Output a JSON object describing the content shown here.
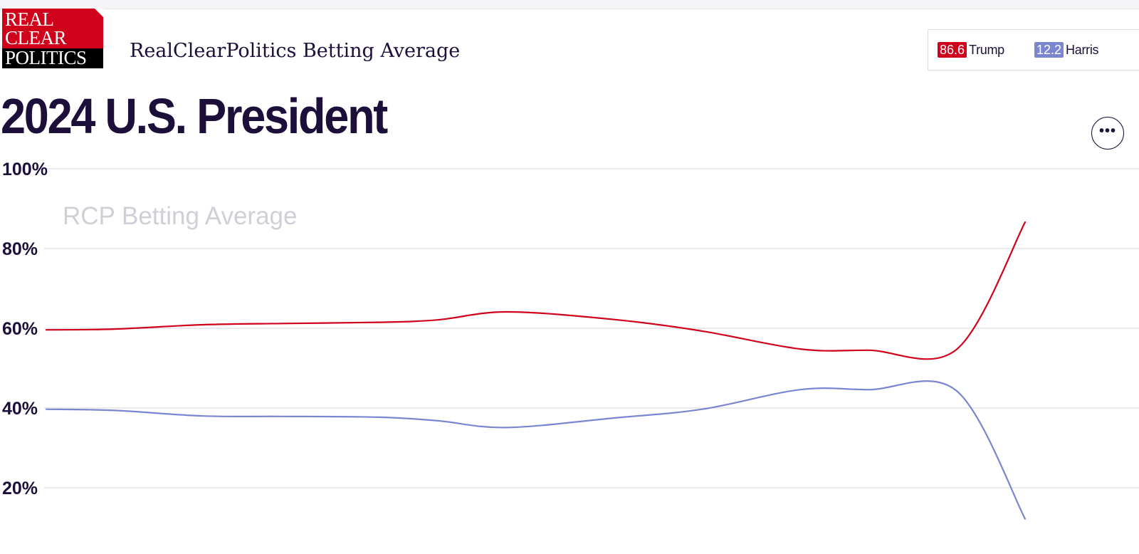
{
  "header": {
    "logo_lines": [
      "REAL",
      "CLEAR",
      "POLITICS"
    ],
    "site_title": "RealClearPolitics Betting Average"
  },
  "legend": {
    "entries": [
      {
        "value": "86.6",
        "name": "Trump",
        "color": "#d0011b"
      },
      {
        "value": "12.2",
        "name": "Harris",
        "color": "#7b86d0"
      }
    ]
  },
  "page": {
    "headline": "2024 U.S. President"
  },
  "more_button": {
    "label": "•••",
    "icon": "more-horizontal-icon"
  },
  "chart_data": {
    "type": "line",
    "title": "RCP Betting Average",
    "xlabel": "",
    "ylabel": "",
    "ylim": [
      10,
      100
    ],
    "yticks": [
      "100%",
      "80%",
      "60%",
      "40%",
      "20%"
    ],
    "ytick_values": [
      100,
      80,
      60,
      40,
      20
    ],
    "grid": true,
    "x": [
      0,
      0.07,
      0.16,
      0.24,
      0.34,
      0.4,
      0.47,
      0.58,
      0.67,
      0.77,
      0.84,
      0.93,
      1.0
    ],
    "series": [
      {
        "name": "Trump",
        "color": "#d0011b",
        "values": [
          59.6,
          59.8,
          60.9,
          61.2,
          61.5,
          62.1,
          64.1,
          62.2,
          59.3,
          54.8,
          54.5,
          54.7,
          86.6
        ]
      },
      {
        "name": "Harris",
        "color": "#7b86d0",
        "values": [
          39.7,
          39.4,
          38.0,
          37.9,
          37.7,
          36.8,
          35.1,
          37.5,
          39.7,
          44.6,
          44.6,
          44.3,
          12.2
        ]
      }
    ]
  }
}
